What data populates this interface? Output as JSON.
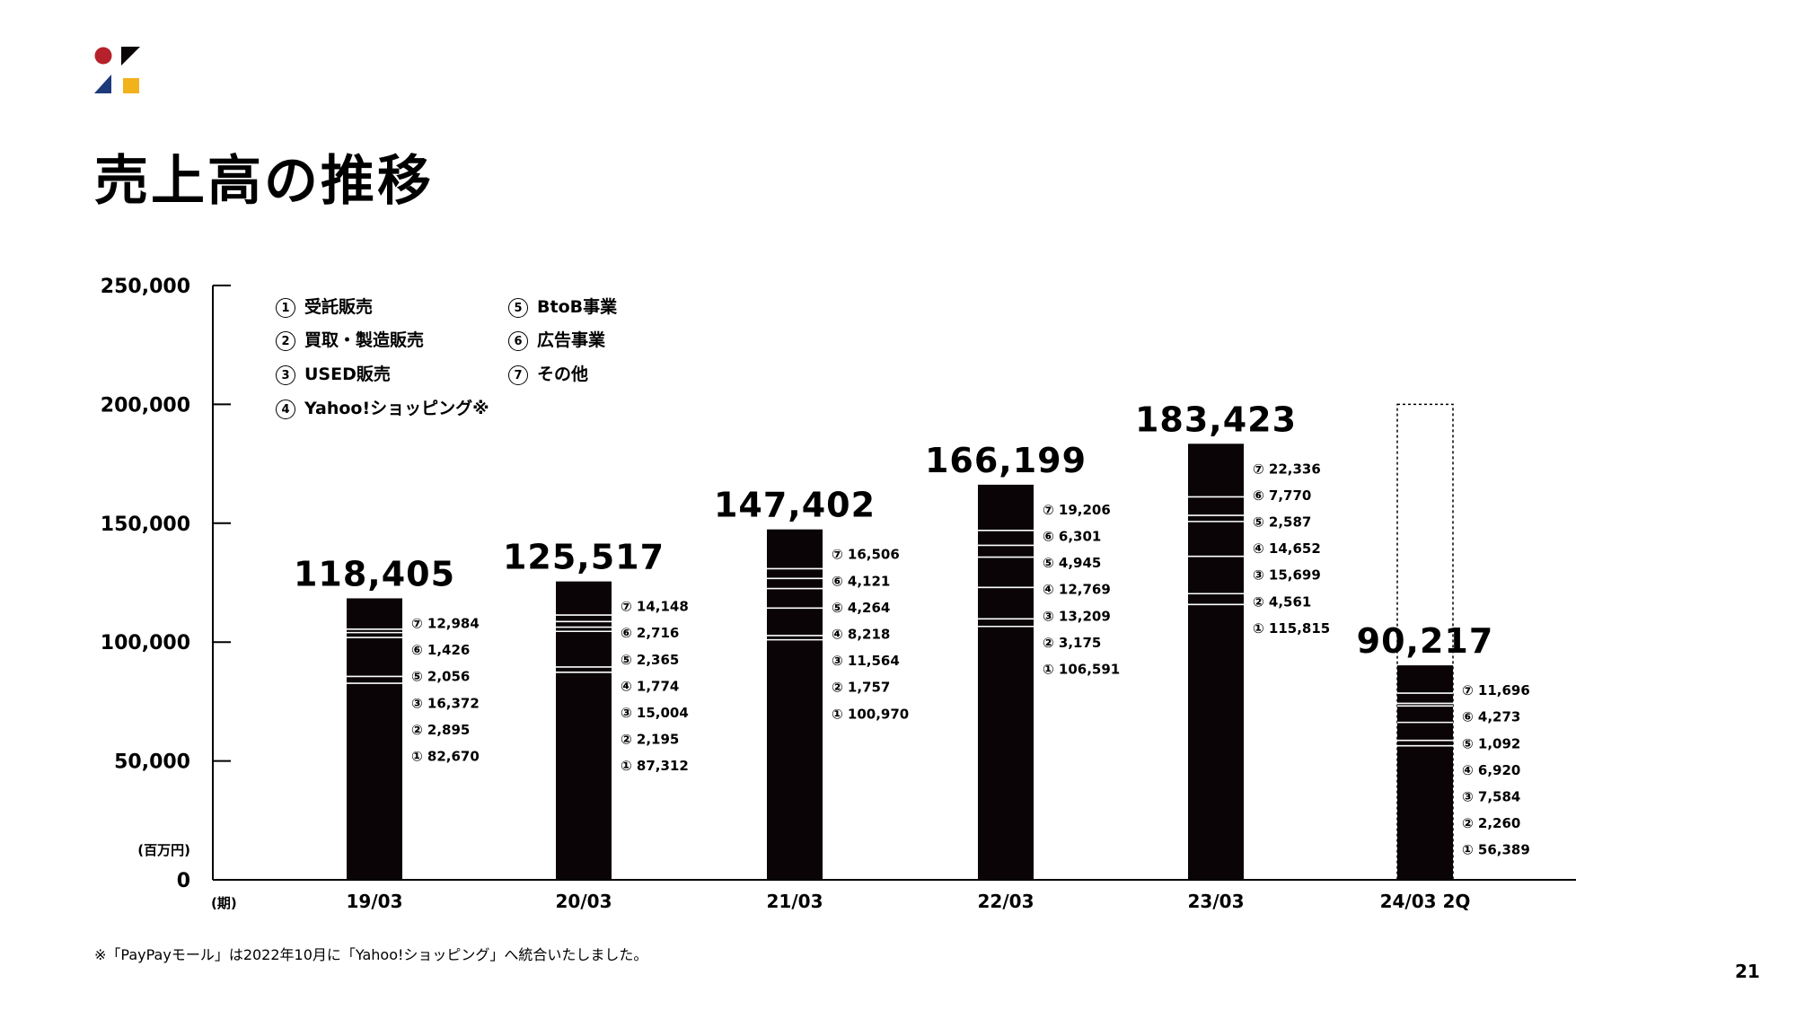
{
  "title": "売上高の推移",
  "footnote": "※「PayPayモール」は2022年10月に「Yahoo!ショッピング」へ統合いたしました。",
  "page_number": "21",
  "colors": {
    "bar": "#0a0406",
    "logo_red": "#b5222b",
    "logo_navy": "#1d3a7a",
    "logo_yellow": "#f2b21c"
  },
  "legend": [
    {
      "num": "1",
      "label": "受託販売"
    },
    {
      "num": "2",
      "label": "買取・製造販売"
    },
    {
      "num": "3",
      "label": "USED販売"
    },
    {
      "num": "4",
      "label": "Yahoo!ショッピング※"
    },
    {
      "num": "5",
      "label": "BtoB事業"
    },
    {
      "num": "6",
      "label": "広告事業"
    },
    {
      "num": "7",
      "label": "その他"
    }
  ],
  "chart_data": {
    "type": "bar",
    "stacked": true,
    "categories": [
      "19/03",
      "20/03",
      "21/03",
      "22/03",
      "23/03",
      "24/03 2Q"
    ],
    "x_unit_label": "(期)",
    "y_unit_label": "(百万円)",
    "ylim": [
      0,
      250000
    ],
    "yticks": [
      "0",
      "50,000",
      "100,000",
      "150,000",
      "200,000",
      "250,000"
    ],
    "ytick_values": [
      0,
      50000,
      100000,
      150000,
      200000,
      250000
    ],
    "totals": [
      118405,
      125517,
      147402,
      166199,
      183423,
      90217
    ],
    "total_labels": [
      "118,405",
      "125,517",
      "147,402",
      "166,199",
      "183,423",
      "90,217"
    ],
    "outlined_projection_for_last": 200000,
    "series": [
      {
        "name": "① 受託販売",
        "values": [
          82670,
          87312,
          100970,
          106591,
          115815,
          56389
        ]
      },
      {
        "name": "② 買取・製造販売",
        "values": [
          2895,
          2195,
          1757,
          3175,
          4561,
          2260
        ]
      },
      {
        "name": "③ USED販売",
        "values": [
          16372,
          15004,
          11564,
          13209,
          15699,
          7584
        ]
      },
      {
        "name": "④ Yahoo!ショッピング※",
        "values": [
          null,
          1774,
          8218,
          12769,
          14652,
          6920
        ]
      },
      {
        "name": "⑤ BtoB事業",
        "values": [
          2056,
          2365,
          4264,
          4945,
          2587,
          1092
        ]
      },
      {
        "name": "⑥ 広告事業",
        "values": [
          1426,
          2716,
          4121,
          6301,
          7770,
          4273
        ]
      },
      {
        "name": "⑦ その他",
        "values": [
          12984,
          14148,
          16506,
          19206,
          22336,
          11696
        ]
      }
    ],
    "segment_labels": [
      [
        "⑦ 12,984",
        "⑥ 1,426",
        "⑤ 2,056",
        "③ 16,372",
        "② 2,895",
        "① 82,670"
      ],
      [
        "⑦ 14,148",
        "⑥ 2,716",
        "⑤ 2,365",
        "④ 1,774",
        "③ 15,004",
        "② 2,195",
        "① 87,312"
      ],
      [
        "⑦ 16,506",
        "⑥ 4,121",
        "⑤ 4,264",
        "④ 8,218",
        "③ 11,564",
        "② 1,757",
        "① 100,970"
      ],
      [
        "⑦ 19,206",
        "⑥ 6,301",
        "⑤ 4,945",
        "④ 12,769",
        "③ 13,209",
        "② 3,175",
        "① 106,591"
      ],
      [
        "⑦ 22,336",
        "⑥ 7,770",
        "⑤ 2,587",
        "④ 14,652",
        "③ 15,699",
        "② 4,561",
        "① 115,815"
      ],
      [
        "⑦ 11,696",
        "⑥ 4,273",
        "⑤ 1,092",
        "④ 6,920",
        "③ 7,584",
        "② 2,260",
        "① 56,389"
      ]
    ]
  }
}
